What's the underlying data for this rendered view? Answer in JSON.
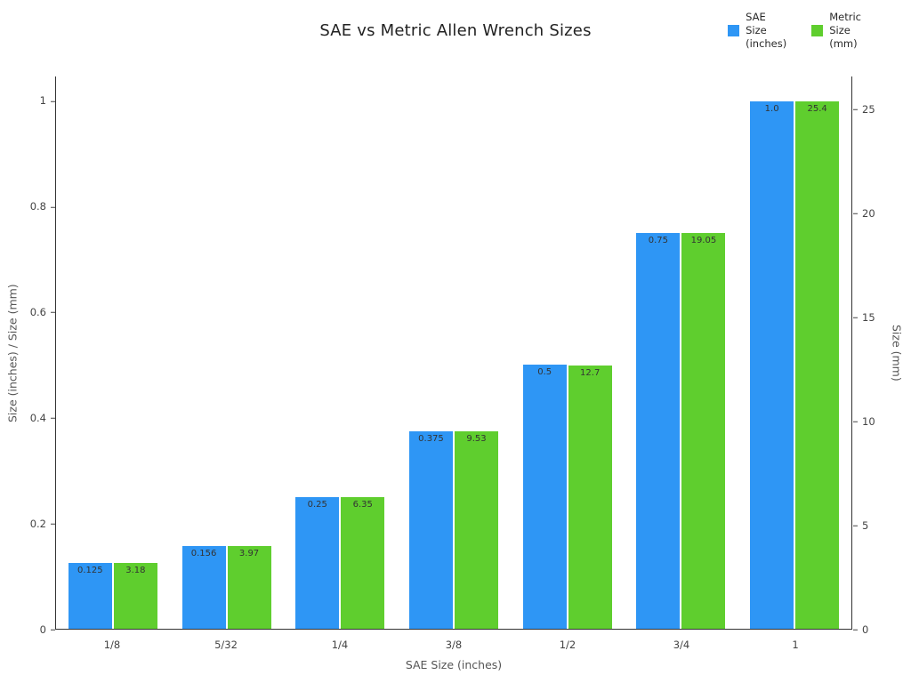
{
  "title": "SAE vs Metric Allen Wrench Sizes",
  "legend": {
    "items": [
      {
        "label": "SAE Size (inches)",
        "lines": [
          "SAE",
          "Size",
          "(inches)"
        ],
        "color": "#2E96F5",
        "series_key": "sae"
      },
      {
        "label": "Metric Size (mm)",
        "lines": [
          "Metric",
          "Size",
          "(mm)"
        ],
        "color": "#5FCE2E",
        "series_key": "metric"
      }
    ]
  },
  "chart_data": {
    "type": "bar",
    "title": "SAE vs Metric Allen Wrench Sizes",
    "categories": [
      "1/8",
      "5/32",
      "1/4",
      "3/8",
      "1/2",
      "3/4",
      "1"
    ],
    "series": [
      {
        "name": "SAE Size (inches)",
        "key": "sae",
        "color": "#2E96F5",
        "axis": "left",
        "values": [
          0.125,
          0.156,
          0.25,
          0.375,
          0.5,
          0.75,
          1.0
        ],
        "labels": [
          "0.125",
          "0.156",
          "0.25",
          "0.375",
          "0.5",
          "0.75",
          "1.0"
        ]
      },
      {
        "name": "Metric Size (mm)",
        "key": "metric",
        "color": "#5FCE2E",
        "axis": "right",
        "values": [
          3.18,
          3.97,
          6.35,
          9.53,
          12.7,
          19.05,
          25.4
        ],
        "labels": [
          "3.18",
          "3.97",
          "6.35",
          "9.53",
          "12.7",
          "19.05",
          "25.4"
        ]
      }
    ],
    "xlabel": "SAE Size (inches)",
    "ylabel_left": "Size (inches) / Size (mm)",
    "ylabel_right": "Size (mm)",
    "yaxis_left": {
      "min": 0,
      "max": 1.047,
      "ticks": [
        0,
        0.2,
        0.4,
        0.6,
        0.8,
        1
      ]
    },
    "yaxis_right": {
      "min": 0,
      "max": 26.6,
      "ticks": [
        0,
        5,
        10,
        15,
        20,
        25
      ]
    },
    "grid": false,
    "legend_position": "top-right",
    "bar_value_label_color": "#333333"
  }
}
